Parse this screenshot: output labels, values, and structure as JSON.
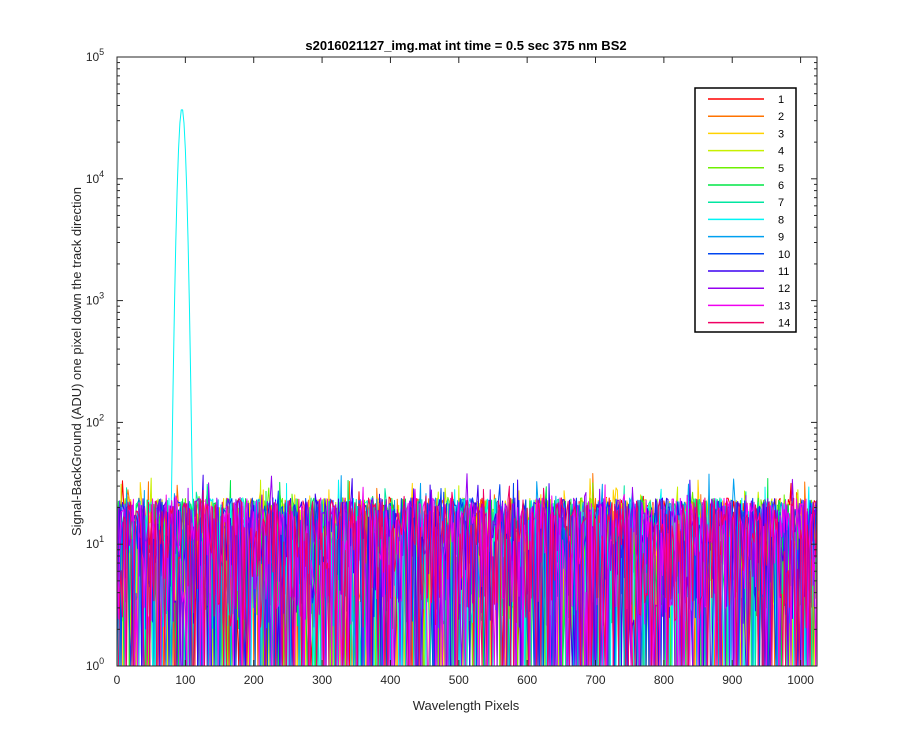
{
  "chart_data": {
    "type": "line",
    "title": "s2016021127_img.mat int time = 0.5 sec  375 nm BS2",
    "xlabel": "Wavelength Pixels",
    "ylabel": "Signal-BackGround (ADU) one pixel down the track direction",
    "xlim": [
      0,
      1024
    ],
    "ylim": [
      1,
      100000
    ],
    "yscale": "log",
    "xticks": [
      "0",
      "100",
      "200",
      "300",
      "400",
      "500",
      "600",
      "700",
      "800",
      "900",
      "1000"
    ],
    "yticks": [
      {
        "base": "10",
        "exp": "0"
      },
      {
        "base": "10",
        "exp": "1"
      },
      {
        "base": "10",
        "exp": "2"
      },
      {
        "base": "10",
        "exp": "3"
      },
      {
        "base": "10",
        "exp": "4"
      },
      {
        "base": "10",
        "exp": "5"
      }
    ],
    "grid": false,
    "legend_position": "top-right",
    "noise_description_range": [
      1,
      40
    ],
    "series": [
      {
        "name": "1",
        "color": "#ff0000"
      },
      {
        "name": "2",
        "color": "#ff7300"
      },
      {
        "name": "3",
        "color": "#ffd200"
      },
      {
        "name": "4",
        "color": "#c8f000"
      },
      {
        "name": "5",
        "color": "#6ef000"
      },
      {
        "name": "6",
        "color": "#00e646"
      },
      {
        "name": "7",
        "color": "#00e6a0"
      },
      {
        "name": "8",
        "color": "#00f5f5",
        "peak": {
          "x": 95,
          "y": 38000
        }
      },
      {
        "name": "9",
        "color": "#00a0f0"
      },
      {
        "name": "10",
        "color": "#0046f0"
      },
      {
        "name": "11",
        "color": "#3c00f0"
      },
      {
        "name": "12",
        "color": "#9600f0"
      },
      {
        "name": "13",
        "color": "#f000f0"
      },
      {
        "name": "14",
        "color": "#f00064"
      }
    ]
  }
}
